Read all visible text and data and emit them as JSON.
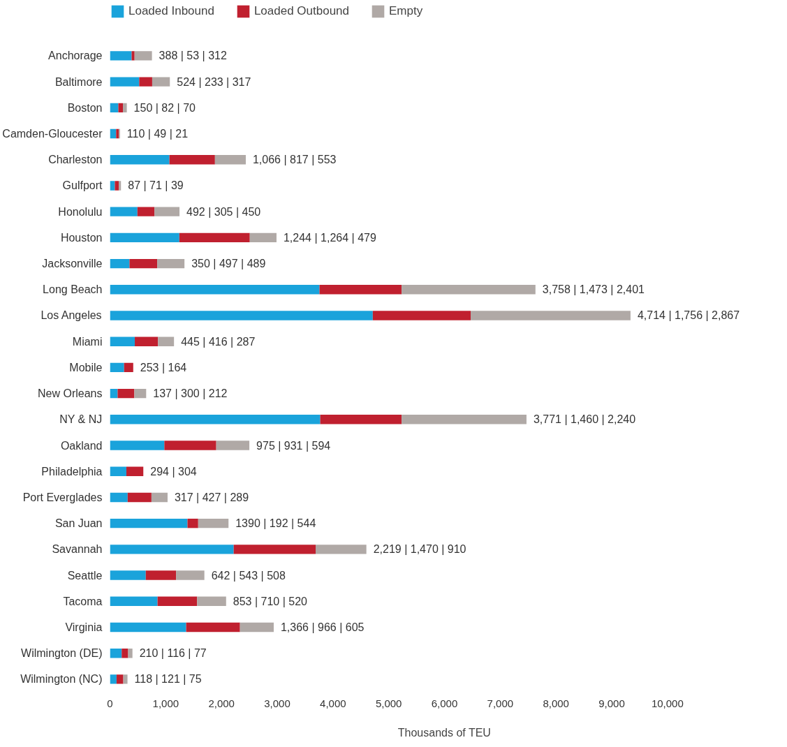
{
  "chart_data": {
    "type": "bar",
    "orientation": "horizontal",
    "stacked": true,
    "xlabel": "Thousands of TEU",
    "legend": "top",
    "grid": false,
    "categories": [
      "Anchorage",
      "Baltimore",
      "Boston",
      "Camden-Gloucester",
      "Charleston",
      "Gulfport",
      "Honolulu",
      "Houston",
      "Jacksonville",
      "Long Beach",
      "Los Angeles",
      "Miami",
      "Mobile",
      "New Orleans",
      "NY & NJ",
      "Oakland",
      "Philadelphia",
      "Port Everglades",
      "San Juan",
      "Savannah",
      "Seattle",
      "Tacoma",
      "Virginia",
      "Wilmington (DE)",
      "Wilmington (NC)"
    ],
    "xlim": [
      0,
      10000
    ],
    "xticks": [
      0,
      {
        "value": 1000,
        "label": "1,000"
      },
      {
        "value": 2000,
        "label": "2,000"
      },
      {
        "value": 3000,
        "label": "3,000"
      },
      {
        "value": 4000,
        "label": "4,000"
      },
      {
        "value": 5000,
        "label": "5,000"
      },
      {
        "value": 6000,
        "label": "6,000"
      },
      {
        "value": 7000,
        "label": "7,000"
      },
      {
        "value": 8000,
        "label": "8,000"
      },
      {
        "value": 9000,
        "label": "9,000"
      },
      {
        "value": 10000,
        "label": "10,000"
      }
    ],
    "series": [
      {
        "name": "Loaded Inbound",
        "color": "#1aa3db",
        "values": [
          388,
          524,
          150,
          110,
          1066,
          87,
          492,
          1244,
          350,
          3758,
          4714,
          445,
          253,
          137,
          3771,
          975,
          294,
          317,
          1390,
          2219,
          642,
          853,
          1366,
          210,
          118
        ]
      },
      {
        "name": "Loaded Outbound",
        "color": "#c0202f",
        "values": [
          53,
          233,
          82,
          49,
          817,
          71,
          305,
          1264,
          497,
          1473,
          1756,
          416,
          164,
          300,
          1460,
          931,
          304,
          427,
          192,
          1470,
          543,
          710,
          966,
          116,
          121
        ]
      },
      {
        "name": "Empty",
        "color": "#b0a9a6",
        "values": [
          312,
          317,
          70,
          21,
          553,
          39,
          450,
          479,
          489,
          2401,
          2867,
          287,
          null,
          212,
          2240,
          594,
          null,
          289,
          544,
          910,
          508,
          520,
          605,
          77,
          75
        ],
        "value_labels": [
          "388 | 53 | 312",
          "524 | 233 | 317",
          "150 | 82 | 70",
          "110 | 49 | 21",
          "1,066 | 817 | 553",
          "87 | 71 | 39",
          "492 | 305 | 450",
          "1,244 | 1,264 | 479",
          "350 | 497 | 489",
          "3,758 | 1,473 | 2,401",
          "4,714 | 1,756 | 2,867",
          "445 | 416 | 287",
          "253 | 164",
          "137 | 300 | 212",
          "3,771 | 1,460 | 2,240",
          "975 | 931 | 594",
          "294 | 304",
          "317 | 427 | 289",
          "1390 | 192 | 544",
          "2,219 | 1,470 | 910",
          "642 | 543 | 508",
          "853 | 710 | 520",
          "1,366 | 966 | 605",
          "210 | 116 | 77",
          "118 | 121 | 75"
        ]
      }
    ]
  }
}
